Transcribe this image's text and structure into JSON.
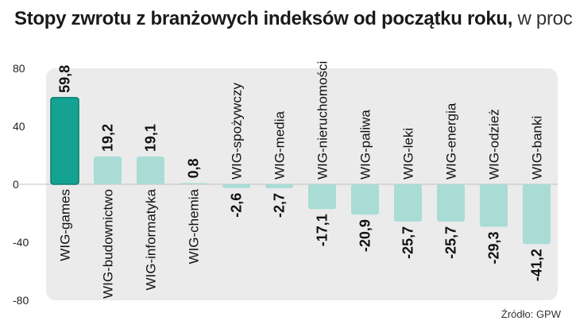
{
  "header": {
    "title": "Stopy zwrotu z branżowych indeksów od początku roku,",
    "unit": "w proc."
  },
  "source": "Źródło: GPW",
  "colors": {
    "highlight": "#14a393",
    "highlight_stroke": "#0d7d70",
    "bar": "#a8dcd5",
    "panel": "#ebebeb",
    "zero_line": "#c0c0c0"
  },
  "chart_data": {
    "type": "bar",
    "title": "Stopy zwrotu z branżowych indeksów od początku roku, w proc.",
    "xlabel": "",
    "ylabel": "",
    "ylim": [
      -80,
      80
    ],
    "yticks": [
      80,
      40,
      0,
      -40,
      -80
    ],
    "categories": [
      "WIG-games",
      "WIG-budownictwo",
      "WIG-informatyka",
      "WIG-chemia",
      "WIG-spożywczy",
      "WIG-media",
      "WIG-nieruchomości",
      "WIG-paliwa",
      "WIG-leki",
      "WIG-energia",
      "WIG-odzież",
      "WIG-banki"
    ],
    "values": [
      59.8,
      19.2,
      19.1,
      0.8,
      -2.6,
      -2.7,
      -17.1,
      -20.9,
      -25.7,
      -25.7,
      -29.3,
      -41.2
    ],
    "value_labels": [
      "59,8",
      "19,2",
      "19,1",
      "0,8",
      "-2,6",
      "-2,7",
      "-17,1",
      "-20,9",
      "-25,7",
      "-25,7",
      "-29,3",
      "-41,2"
    ],
    "highlight_index": 0,
    "grid": false,
    "legend": "none"
  }
}
